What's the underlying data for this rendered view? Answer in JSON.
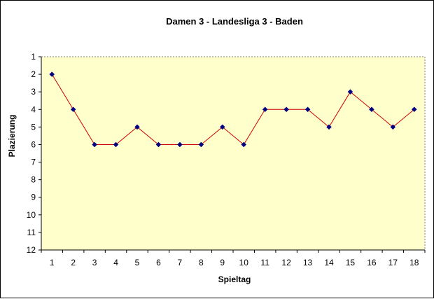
{
  "chart_data": {
    "type": "line",
    "title": "Damen 3 - Landesliga 3 - Baden",
    "xlabel": "Spieltag",
    "ylabel": "Plazierung",
    "x": [
      1,
      2,
      3,
      4,
      5,
      6,
      7,
      8,
      9,
      10,
      11,
      12,
      13,
      14,
      15,
      16,
      17,
      18
    ],
    "y_ticks": [
      1,
      2,
      3,
      4,
      5,
      6,
      7,
      8,
      9,
      10,
      11,
      12
    ],
    "ylim": [
      1,
      12
    ],
    "y_inverted": true,
    "grid": false,
    "series": [
      {
        "values": [
          2,
          4,
          6,
          6,
          5,
          6,
          6,
          6,
          5,
          6,
          4,
          4,
          4,
          5,
          3,
          4,
          5,
          4
        ],
        "line_color": "#cc0000",
        "marker_color": "#000080"
      }
    ],
    "plot_background": "#ffffcc",
    "plot_border_color": "#808080"
  }
}
